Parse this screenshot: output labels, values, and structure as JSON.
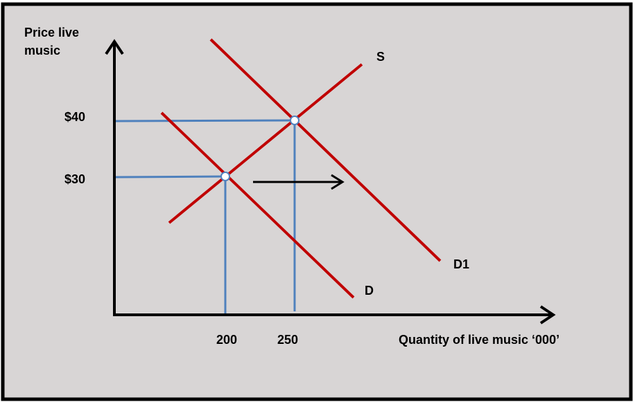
{
  "y_axis_label": "Price live music",
  "x_axis_label": "Quantity of live music ‘000’",
  "price_labels": [
    "$40",
    "$30"
  ],
  "quantity_labels": [
    "200",
    "250"
  ],
  "curve_labels": {
    "supply": "S",
    "demand": "D",
    "new_demand": "D1"
  }
}
